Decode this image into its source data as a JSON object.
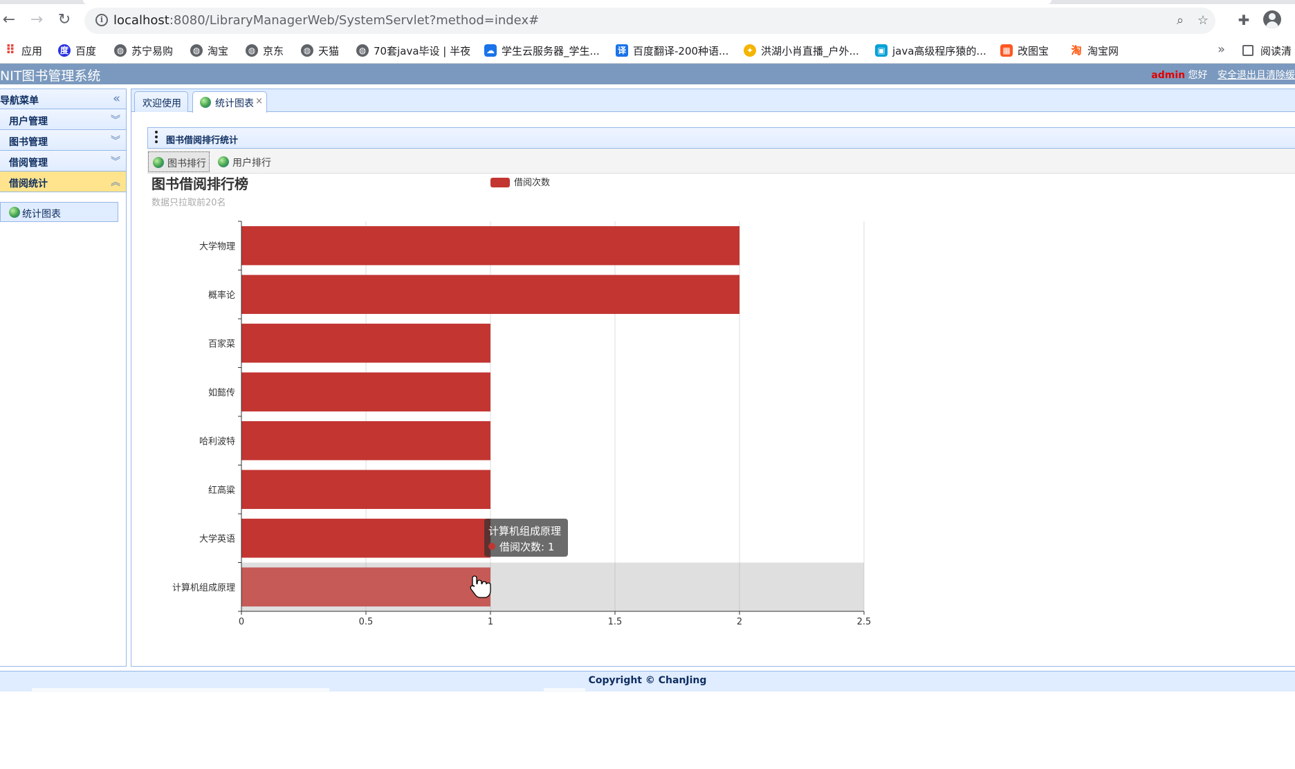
{
  "browser": {
    "url_host": "localhost",
    "url_rest": ":8080/LibraryManagerWeb/SystemServlet?method=index#",
    "bookmarks": [
      {
        "label": "应用",
        "icon": "apps-grid-icon"
      },
      {
        "label": "百度",
        "icon": "baidu-icon"
      },
      {
        "label": "苏宁易购",
        "icon": "globe-icon"
      },
      {
        "label": "淘宝",
        "icon": "globe-icon"
      },
      {
        "label": "京东",
        "icon": "globe-icon"
      },
      {
        "label": "天猫",
        "icon": "globe-icon"
      },
      {
        "label": "70套java毕设 | 半夜",
        "icon": "globe-icon"
      },
      {
        "label": "学生云服务器_学生...",
        "icon": "cloud-icon"
      },
      {
        "label": "百度翻译-200种语...",
        "icon": "translate-icon"
      },
      {
        "label": "洪湖小肖直播_户外...",
        "icon": "live-icon"
      },
      {
        "label": "java高级程序猿的...",
        "icon": "bilibili-icon"
      },
      {
        "label": "改图宝",
        "icon": "image-tool-icon"
      },
      {
        "label": "淘宝网",
        "icon": "taobao-icon"
      }
    ],
    "bookmarks_more": "»",
    "reader_label": "阅读清"
  },
  "app": {
    "title": "NIT图书管理系统",
    "user": "admin",
    "greeting": "您好",
    "logout": "安全退出且清除缓"
  },
  "sidebar": {
    "title": "导航菜单",
    "sections": [
      {
        "label": "用户管理",
        "expanded": false
      },
      {
        "label": "图书管理",
        "expanded": false
      },
      {
        "label": "借阅管理",
        "expanded": false
      },
      {
        "label": "借阅统计",
        "expanded": true
      }
    ],
    "links": [
      {
        "label": "统计图表"
      }
    ]
  },
  "main": {
    "tabs": [
      {
        "label": "欢迎使用",
        "active": false
      },
      {
        "label": "统计图表",
        "active": true,
        "close": "×"
      }
    ],
    "panel_title": "图书借阅排行统计",
    "sub_tabs": [
      {
        "label": "图书排行",
        "active": true
      },
      {
        "label": "用户排行",
        "active": false
      }
    ]
  },
  "chart_data": {
    "type": "bar",
    "orientation": "horizontal",
    "title": "图书借阅排行榜",
    "subtitle": "数据只拉取前20名",
    "categories": [
      "大学物理",
      "概率论",
      "百家菜",
      "如懿传",
      "哈利波特",
      "红高粱",
      "大学英语",
      "计算机组成原理"
    ],
    "series": [
      {
        "name": "借阅次数",
        "color": "#c23531",
        "values": [
          2,
          2,
          1,
          1,
          1,
          1,
          1,
          1
        ]
      }
    ],
    "xlim": [
      0,
      2.5
    ],
    "xticks": [
      "0",
      "0.5",
      "1",
      "1.5",
      "2",
      "2.5"
    ],
    "grid": true,
    "legend_position": "top-center",
    "highlighted_category": "计算机组成原理",
    "tooltip": {
      "title": "计算机组成原理",
      "series_name": "借阅次数",
      "value": 1,
      "line": "借阅次数: 1"
    }
  },
  "footer": {
    "copyright": "Copyright © ChanJing"
  }
}
